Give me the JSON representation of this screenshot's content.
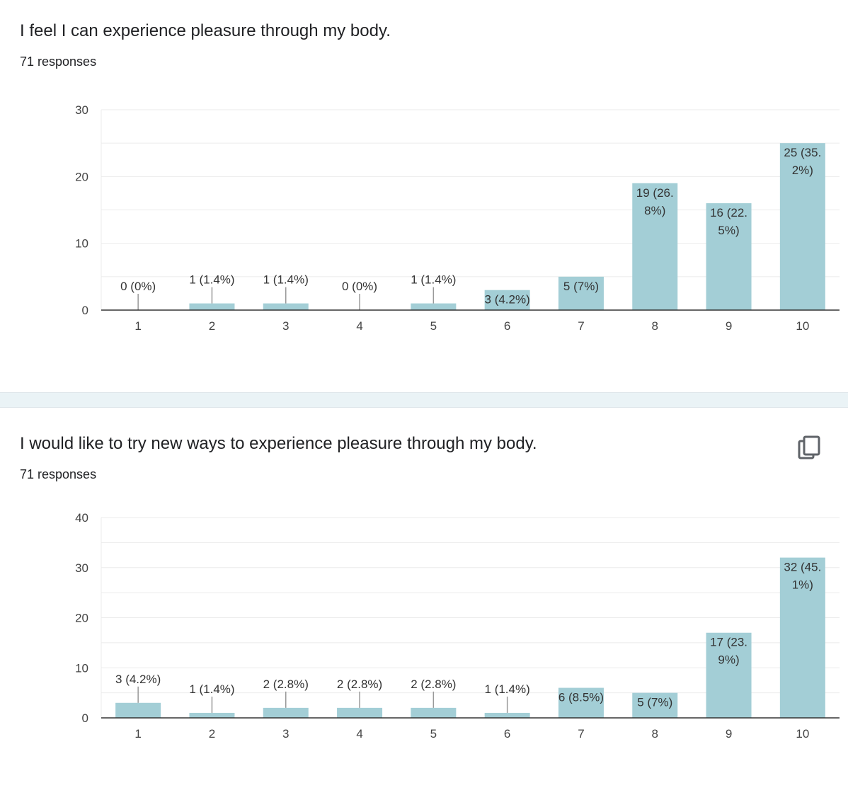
{
  "cards": [
    {
      "title": "I feel I can experience pleasure through my body.",
      "responses": "71 responses"
    },
    {
      "title": "I would like to try new ways to experience pleasure through my body.",
      "responses": "71 responses",
      "copy_icon": "copy-icon"
    }
  ],
  "colors": {
    "bar": "#a3ced6",
    "grid": "#ebebeb",
    "axis": "#333333",
    "text": "#202124",
    "separator": "#eaf3f6"
  },
  "chart_data": [
    {
      "type": "bar",
      "title": "",
      "xlabel": "",
      "ylabel": "",
      "categories": [
        "1",
        "2",
        "3",
        "4",
        "5",
        "6",
        "7",
        "8",
        "9",
        "10"
      ],
      "values": [
        0,
        1,
        1,
        0,
        1,
        3,
        5,
        19,
        16,
        25
      ],
      "data_labels": [
        "0 (0%)",
        "1 (1.4%)",
        "1 (1.4%)",
        "0 (0%)",
        "1 (1.4%)",
        "3 (4.2%)",
        "5 (7%)",
        "19 (26.8%)",
        "16 (22.5%)",
        "25 (35.2%)"
      ],
      "ylim": [
        0,
        30
      ],
      "y_ticks": [
        "0",
        "10",
        "20",
        "30"
      ],
      "grid": true
    },
    {
      "type": "bar",
      "title": "",
      "xlabel": "",
      "ylabel": "",
      "categories": [
        "1",
        "2",
        "3",
        "4",
        "5",
        "6",
        "7",
        "8",
        "9",
        "10"
      ],
      "values": [
        3,
        1,
        2,
        2,
        2,
        1,
        6,
        5,
        17,
        32
      ],
      "data_labels": [
        "3 (4.2%)",
        "1 (1.4%)",
        "2 (2.8%)",
        "2 (2.8%)",
        "2 (2.8%)",
        "1 (1.4%)",
        "6 (8.5%)",
        "5 (7%)",
        "17 (23.9%)",
        "32 (45.1%)"
      ],
      "ylim": [
        0,
        40
      ],
      "y_ticks": [
        "0",
        "10",
        "20",
        "30",
        "40"
      ],
      "grid": true
    }
  ]
}
